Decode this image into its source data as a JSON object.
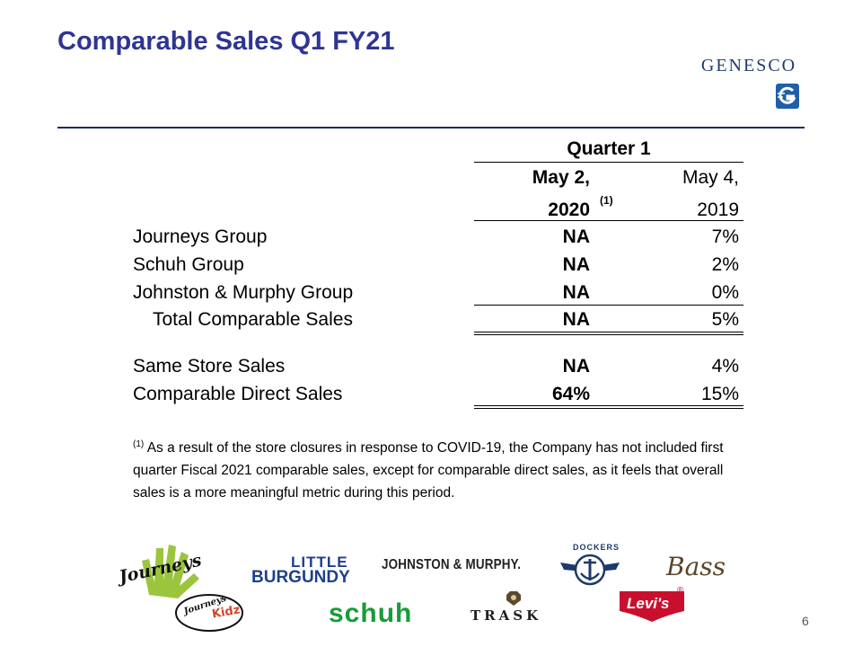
{
  "slide": {
    "title": "Comparable Sales Q1 FY21",
    "logo_text": "GENESCO",
    "page_number": "6"
  },
  "table": {
    "period_header": "Quarter 1",
    "col1_header_line1": "May 2,",
    "col1_header_line2": "2020",
    "col1_note_marker": "(1)",
    "col2_header_line1": "May 4,",
    "col2_header_line2": "2019",
    "rows": [
      {
        "label": "Journeys Group",
        "y2020": "NA",
        "y2019": "7%"
      },
      {
        "label": "Schuh Group",
        "y2020": "NA",
        "y2019": "2%"
      },
      {
        "label": "Johnston & Murphy Group",
        "y2020": "NA",
        "y2019": "0%"
      },
      {
        "label": "Total Comparable Sales",
        "y2020": "NA",
        "y2019": "5%"
      },
      {
        "label": "Same Store Sales",
        "y2020": "NA",
        "y2019": "4%"
      },
      {
        "label": "Comparable Direct Sales",
        "y2020": "64%",
        "y2019": "15%"
      }
    ]
  },
  "footnote": {
    "marker": "(1)",
    "text": "As a result of the store closures in response to COVID-19, the Company has not included first quarter Fiscal 2021 comparable sales, except for comparable direct sales, as it feels that overall sales is a more meaningful metric during this period."
  },
  "brands": {
    "journeys": "Journeys",
    "journeys_kidz_1": "Journeys",
    "journeys_kidz_2": "Kidz",
    "little_burgundy_1": "LITTLE",
    "little_burgundy_2": "BURGUNDY",
    "johnston_murphy": "JOHNSTON & MURPHY.",
    "schuh": "schuh",
    "trask": "TRASK",
    "dockers": "DOCKERS",
    "bass": "Bass",
    "levis": "Levi's",
    "registered": "®"
  },
  "colors": {
    "title": "#2e3592",
    "rule": "#1e2b61",
    "logo": "#1f3c6e",
    "little_burgundy": "#1e3f8c",
    "schuh": "#1a9b3a",
    "levis": "#c8102e"
  }
}
